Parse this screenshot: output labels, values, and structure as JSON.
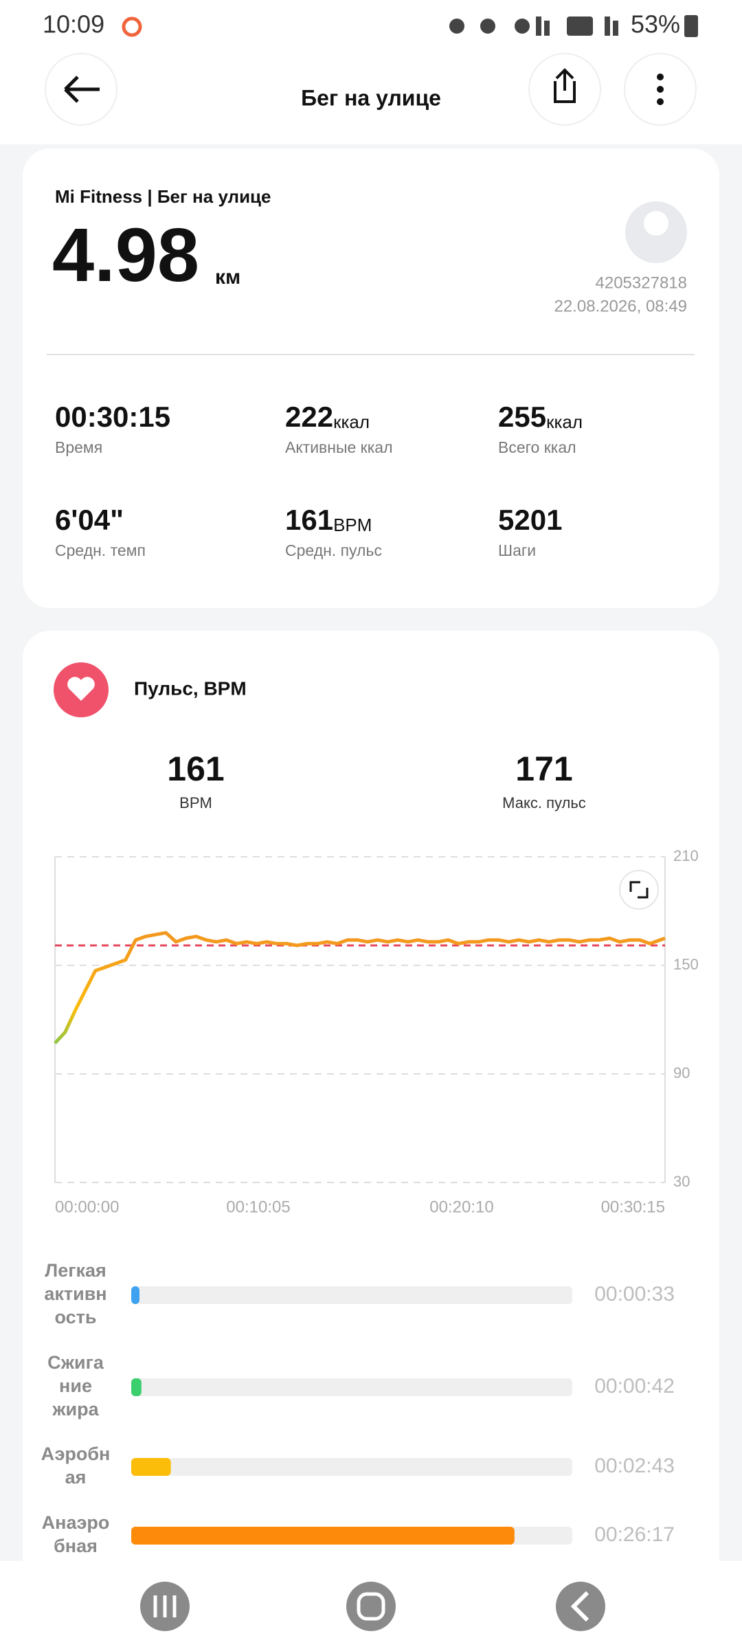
{
  "status": {
    "time": "10:09",
    "battery": "53%"
  },
  "header": {
    "title": "Бег на улице"
  },
  "summary": {
    "source": "Mi Fitness | Бег на улице",
    "distance": "4.98",
    "distance_unit": "км",
    "user_id": "4205327818",
    "datetime": "22.08.2026, 08:49"
  },
  "stats": [
    {
      "value": "00:30:15",
      "label": "Время"
    },
    {
      "value": "222",
      "unit": "ккал",
      "label": "Активные ккал"
    },
    {
      "value": "255",
      "unit": "ккал",
      "label": "Всего ккал"
    },
    {
      "value": "6'04\"",
      "label": "Средн. темп"
    },
    {
      "value": "161",
      "unit": "BPM",
      "label": "Средн. пульс"
    },
    {
      "value": "5201",
      "label": "Шаги"
    }
  ],
  "heart": {
    "title": "Пульс, BPM",
    "avg": {
      "value": 161,
      "label": "BPM"
    },
    "max": {
      "value": 171,
      "label": "Макс. пульс"
    }
  },
  "chart_data": {
    "type": "line",
    "color": "#f39a1e",
    "reference_color": "#e5475c",
    "x": [
      0,
      30,
      60,
      90,
      120,
      150,
      180,
      210,
      240,
      270,
      300,
      330,
      360,
      390,
      420,
      450,
      480,
      510,
      540,
      570,
      600,
      630,
      660,
      690,
      720,
      750,
      780,
      810,
      840,
      870,
      900,
      930,
      960,
      990,
      1020,
      1050,
      1080,
      1110,
      1140,
      1170,
      1200,
      1230,
      1260,
      1290,
      1320,
      1350,
      1380,
      1410,
      1440,
      1470,
      1500,
      1530,
      1560,
      1590,
      1620,
      1650,
      1680,
      1710,
      1740,
      1770,
      1800,
      1815
    ],
    "values": [
      107,
      113,
      125,
      136,
      147,
      149,
      151,
      153,
      164,
      166,
      167,
      168,
      163,
      165,
      166,
      164,
      163,
      164,
      162,
      163,
      162,
      163,
      162,
      162,
      161,
      162,
      162,
      163,
      162,
      164,
      164,
      163,
      164,
      163,
      164,
      163,
      164,
      163,
      163,
      164,
      162,
      163,
      163,
      164,
      164,
      163,
      164,
      163,
      164,
      163,
      164,
      164,
      163,
      164,
      164,
      165,
      163,
      164,
      164,
      162,
      164,
      165
    ],
    "xlim": [
      0,
      1815
    ],
    "xticks": [
      {
        "value": 0,
        "label": "00:00:00"
      },
      {
        "value": 605,
        "label": "00:10:05"
      },
      {
        "value": 1210,
        "label": "00:20:10"
      },
      {
        "value": 1815,
        "label": "00:30:15"
      }
    ],
    "ylim": [
      30,
      210
    ],
    "yticks": [
      30,
      90,
      150,
      210
    ],
    "grid": true
  },
  "zones": [
    {
      "label_lines": [
        "Легкая",
        "активн",
        "ость"
      ],
      "duration": "00:00:33",
      "color": "#3ea2f0"
    },
    {
      "label_lines": [
        "Сжига",
        "ние",
        "жира"
      ],
      "duration": "00:00:42",
      "color": "#3ccf6e"
    },
    {
      "label_lines": [
        "Аэробн",
        "ая"
      ],
      "duration": "00:02:43",
      "color": "#fcbc0a"
    },
    {
      "label_lines": [
        "Анаэро",
        "бная"
      ],
      "duration": "00:26:17",
      "color": "#fd8a0a"
    }
  ]
}
